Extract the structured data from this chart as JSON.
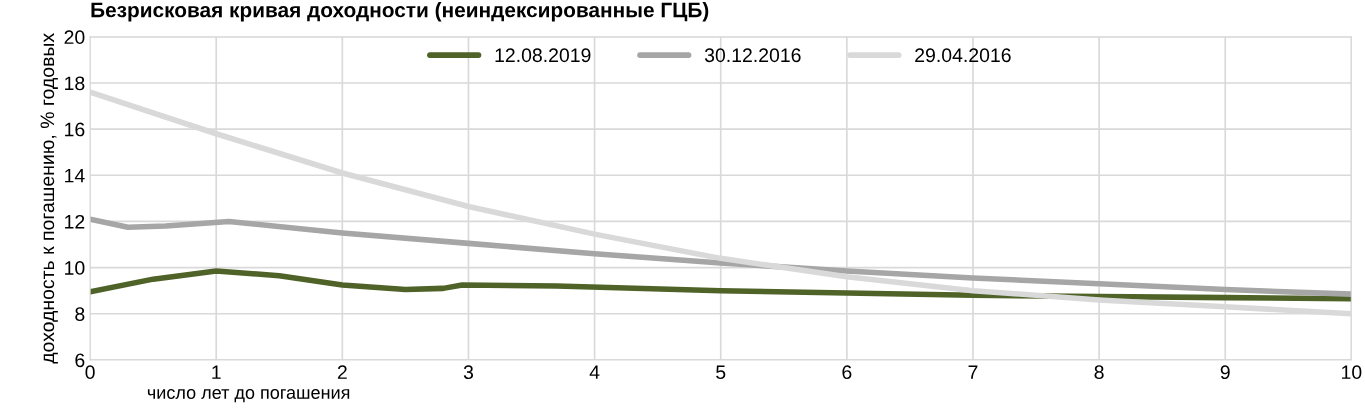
{
  "chart_data": {
    "type": "line",
    "title": "Безрисковая кривая доходности (неиндексированные ГЦБ)",
    "xlabel": "число лет до погашения",
    "ylabel": "доходность к погашению, % годовых",
    "xlim": [
      0,
      10
    ],
    "xticks": [
      0,
      1,
      2,
      3,
      4,
      5,
      6,
      7,
      8,
      9,
      10
    ],
    "ylim": [
      6,
      20
    ],
    "yticks": [
      6,
      8,
      10,
      12,
      14,
      16,
      18,
      20
    ],
    "grid": true,
    "legend": "top",
    "marker": "none",
    "line_style": "solid",
    "series": [
      {
        "name": "12.08.2019",
        "color": "#4f6228",
        "x": [
          0,
          0.5,
          1,
          1.5,
          2,
          2.5,
          2.8,
          2.95,
          3.7,
          5,
          6,
          7,
          8,
          9,
          10
        ],
        "values": [
          8.95,
          9.5,
          9.85,
          9.65,
          9.25,
          9.05,
          9.1,
          9.25,
          9.2,
          9.0,
          8.9,
          8.8,
          8.75,
          8.7,
          8.65
        ]
      },
      {
        "name": "30.12.2016",
        "color": "#a6a6a6",
        "x": [
          0,
          0.3,
          0.6,
          1.1,
          2,
          3,
          4,
          5,
          6,
          7,
          8,
          9,
          10
        ],
        "values": [
          12.1,
          11.75,
          11.8,
          12.0,
          11.5,
          11.05,
          10.6,
          10.2,
          9.85,
          9.55,
          9.3,
          9.05,
          8.85
        ]
      },
      {
        "name": "29.04.2016",
        "color": "#d9d9d9",
        "x": [
          0,
          1,
          2,
          3,
          4,
          5,
          6,
          7,
          8,
          9,
          10
        ],
        "values": [
          17.6,
          15.8,
          14.1,
          12.65,
          11.45,
          10.4,
          9.6,
          9.0,
          8.6,
          8.3,
          8.0
        ]
      }
    ]
  }
}
